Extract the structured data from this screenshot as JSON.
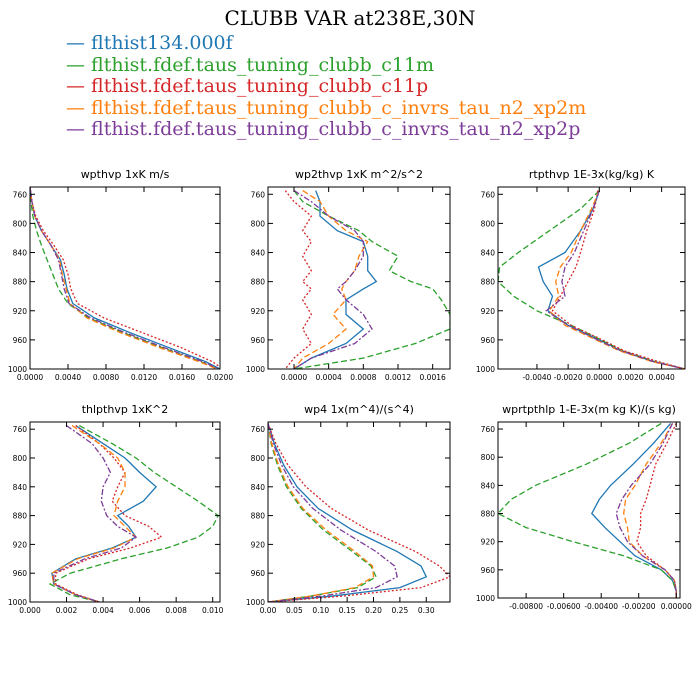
{
  "title": "CLUBB VAR at238E,30N",
  "legend": [
    {
      "label": "flthist134.000f",
      "color": "#1f77b4"
    },
    {
      "label": "flthist.fdef.taus_tuning_clubb_c11m",
      "color": "#2ca02c"
    },
    {
      "label": "flthist.fdef.taus_tuning_clubb_c11p",
      "color": "#d62728"
    },
    {
      "label": "flthist.fdef.taus_tuning_clubb_c_invrs_tau_n2_xp2m",
      "color": "#ff7f0e"
    },
    {
      "label": "flthist.fdef.taus_tuning_clubb_c_invrs_tau_n2_xp2p",
      "color": "#7d3c98"
    }
  ],
  "chart_data": [
    {
      "type": "line",
      "title": "wpthvp   1xK m/s",
      "xlim": [
        0,
        0.02
      ],
      "ylim": [
        1000,
        750
      ],
      "xticks": [
        "0.0000",
        "0.0040",
        "0.0080",
        "0.0120",
        "0.0160",
        "0.0200"
      ],
      "xtick_values": [
        0,
        0.004,
        0.008,
        0.012,
        0.016,
        0.02
      ],
      "yticks": [
        "760",
        "800",
        "840",
        "880",
        "920",
        "960",
        "1000"
      ],
      "ytick_values": [
        760,
        800,
        840,
        880,
        920,
        960,
        1000
      ],
      "y": [
        750,
        770,
        790,
        810,
        830,
        850,
        870,
        890,
        910,
        930,
        950,
        970,
        990,
        1000
      ],
      "series": [
        {
          "values": [
            0.0,
            0.0002,
            0.0005,
            0.0012,
            0.0022,
            0.0032,
            0.0036,
            0.0039,
            0.0045,
            0.0068,
            0.0105,
            0.0145,
            0.0185,
            0.02
          ],
          "color": "#1f77b4",
          "dash": ""
        },
        {
          "values": [
            0.0,
            0.0001,
            0.0003,
            0.0007,
            0.0012,
            0.0018,
            0.0024,
            0.003,
            0.004,
            0.0062,
            0.0098,
            0.0138,
            0.018,
            0.0198
          ],
          "color": "#2ca02c",
          "dash": "6,3"
        },
        {
          "values": [
            0.0,
            0.0002,
            0.0006,
            0.0014,
            0.0025,
            0.0035,
            0.004,
            0.0043,
            0.005,
            0.0078,
            0.0118,
            0.0158,
            0.0192,
            0.0203
          ],
          "color": "#d62728",
          "dash": "2,2"
        },
        {
          "values": [
            0.0,
            0.0002,
            0.0005,
            0.0012,
            0.0022,
            0.0031,
            0.0034,
            0.0038,
            0.0042,
            0.006,
            0.0095,
            0.0135,
            0.0178,
            0.0197
          ],
          "color": "#ff7f0e",
          "dash": "6,3"
        },
        {
          "values": [
            0.0,
            0.0002,
            0.0005,
            0.0012,
            0.0022,
            0.003,
            0.0033,
            0.0036,
            0.0041,
            0.0064,
            0.01,
            0.014,
            0.0182,
            0.0199
          ],
          "color": "#7d3c98",
          "dash": "6,2,2,2"
        }
      ]
    },
    {
      "type": "line",
      "title": "wp2thvp   1xK m^2/s^2",
      "xlim": [
        -0.0003,
        0.0018
      ],
      "ylim": [
        1000,
        750
      ],
      "xticks": [
        "0.0000",
        "0.0004",
        "0.0008",
        "0.0012",
        "0.0016"
      ],
      "xtick_values": [
        0,
        0.0004,
        0.0008,
        0.0012,
        0.0016
      ],
      "yticks": [
        "760",
        "800",
        "840",
        "880",
        "920",
        "960",
        "1000"
      ],
      "ytick_values": [
        760,
        800,
        840,
        880,
        920,
        960,
        1000
      ],
      "y": [
        755,
        770,
        790,
        810,
        825,
        845,
        865,
        880,
        890,
        905,
        925,
        945,
        965,
        985,
        1000
      ],
      "series": [
        {
          "values": [
            0.00025,
            0.0003,
            0.0003,
            0.0005,
            0.0008,
            0.00085,
            0.00085,
            0.00095,
            0.0008,
            0.0006,
            0.0006,
            0.0008,
            0.0006,
            0.0002,
            0.0
          ],
          "color": "#1f77b4",
          "dash": ""
        },
        {
          "values": [
            0.0,
            0.0001,
            0.0004,
            0.00075,
            0.0009,
            0.0012,
            0.0011,
            0.00135,
            0.0016,
            0.0017,
            0.0018,
            0.0018,
            0.0014,
            0.0008,
            0.0
          ],
          "color": "#2ca02c",
          "dash": "6,3"
        },
        {
          "values": [
            -0.0001,
            0.0,
            0.0002,
            0.0001,
            0.0002,
            0.0001,
            0.0002,
            0.0001,
            0.0002,
            0.0001,
            0.0002,
            0.0001,
            0.0002,
            0.0,
            -0.0001
          ],
          "color": "#d62728",
          "dash": "2,2"
        },
        {
          "values": [
            0.0001,
            0.0003,
            0.0004,
            0.0006,
            0.00085,
            0.00075,
            0.0007,
            0.0006,
            0.00055,
            0.0006,
            0.00045,
            0.0006,
            0.0004,
            0.0001,
            0.0
          ],
          "color": "#ff7f0e",
          "dash": "6,3"
        },
        {
          "values": [
            0.0,
            0.0002,
            0.0004,
            0.0007,
            0.0008,
            0.0008,
            0.0007,
            0.0006,
            0.0005,
            0.0006,
            0.0008,
            0.0009,
            0.0007,
            0.0002,
            0.0
          ],
          "color": "#7d3c98",
          "dash": "6,2,2,2"
        }
      ]
    },
    {
      "type": "line",
      "title": "rtpthvp   1E-3x(kg/kg) K",
      "xlim": [
        -0.0065,
        0.0055
      ],
      "ylim": [
        1000,
        750
      ],
      "xticks": [
        "-0.0040",
        "-0.0020",
        "0.0000",
        "0.0020",
        "0.0040"
      ],
      "xtick_values": [
        -0.004,
        -0.002,
        0,
        0.002,
        0.004
      ],
      "yticks": [
        "760",
        "800",
        "840",
        "880",
        "920",
        "960",
        "1000"
      ],
      "ytick_values": [
        760,
        800,
        840,
        880,
        920,
        960,
        1000
      ],
      "y": [
        755,
        780,
        810,
        840,
        860,
        880,
        900,
        920,
        940,
        960,
        975,
        990,
        1000
      ],
      "series": [
        {
          "values": [
            0.0,
            -0.0004,
            -0.0012,
            -0.0022,
            -0.0039,
            -0.0036,
            -0.003,
            -0.0033,
            -0.002,
            0.0,
            0.0014,
            0.0035,
            0.0055
          ],
          "color": "#1f77b4",
          "dash": ""
        },
        {
          "values": [
            0.0,
            -0.0012,
            -0.0032,
            -0.0052,
            -0.0064,
            -0.0065,
            -0.0055,
            -0.004,
            -0.0018,
            0.0001,
            0.0015,
            0.0036,
            0.0055
          ],
          "color": "#2ca02c",
          "dash": "6,3"
        },
        {
          "values": [
            -0.0001,
            -0.0003,
            -0.0008,
            -0.0012,
            -0.0015,
            -0.002,
            -0.0025,
            -0.003,
            -0.0018,
            0.0002,
            0.0016,
            0.0038,
            0.0055
          ],
          "color": "#d62728",
          "dash": "2,2"
        },
        {
          "values": [
            0.0,
            -0.0005,
            -0.0012,
            -0.0018,
            -0.0025,
            -0.0028,
            -0.0026,
            -0.0032,
            -0.0022,
            -0.0002,
            0.0013,
            0.0034,
            0.0055
          ],
          "color": "#ff7f0e",
          "dash": "6,3"
        },
        {
          "values": [
            0.0,
            -0.0004,
            -0.001,
            -0.0016,
            -0.0022,
            -0.0024,
            -0.0022,
            -0.0034,
            -0.002,
            -0.0001,
            0.0014,
            0.0035,
            0.0055
          ],
          "color": "#7d3c98",
          "dash": "6,2,2,2"
        }
      ]
    },
    {
      "type": "line",
      "title": "thlpthvp   1xK^2",
      "xlim": [
        0,
        0.0104
      ],
      "ylim": [
        1000,
        750
      ],
      "xticks": [
        "0.000",
        "0.002",
        "0.004",
        "0.006",
        "0.008",
        "0.010"
      ],
      "xtick_values": [
        0,
        0.002,
        0.004,
        0.006,
        0.008,
        0.01
      ],
      "yticks": [
        "760",
        "800",
        "840",
        "880",
        "920",
        "960",
        "1000"
      ],
      "ytick_values": [
        760,
        800,
        840,
        880,
        920,
        960,
        1000
      ],
      "y": [
        755,
        780,
        800,
        820,
        840,
        860,
        880,
        895,
        910,
        925,
        940,
        960,
        975,
        990,
        1000
      ],
      "series": [
        {
          "values": [
            0.0025,
            0.004,
            0.0052,
            0.006,
            0.0069,
            0.0062,
            0.0048,
            0.0054,
            0.0058,
            0.0045,
            0.0025,
            0.0012,
            0.0013,
            0.0025,
            0.0038
          ],
          "color": "#1f77b4",
          "dash": ""
        },
        {
          "values": [
            0.0027,
            0.0045,
            0.0058,
            0.0068,
            0.008,
            0.0092,
            0.0103,
            0.01,
            0.0092,
            0.0075,
            0.005,
            0.0022,
            0.0011,
            0.0022,
            0.0038
          ],
          "color": "#2ca02c",
          "dash": "6,3"
        },
        {
          "values": [
            0.0025,
            0.0038,
            0.0046,
            0.0052,
            0.0048,
            0.0045,
            0.0052,
            0.0065,
            0.0072,
            0.0055,
            0.0032,
            0.0014,
            0.0014,
            0.0026,
            0.0038
          ],
          "color": "#d62728",
          "dash": "2,2"
        },
        {
          "values": [
            0.0023,
            0.0038,
            0.0048,
            0.0052,
            0.0052,
            0.0048,
            0.0046,
            0.0052,
            0.0058,
            0.0046,
            0.0026,
            0.0012,
            0.0013,
            0.0025,
            0.0038
          ],
          "color": "#ff7f0e",
          "dash": "6,3"
        },
        {
          "values": [
            0.002,
            0.0034,
            0.004,
            0.0044,
            0.004,
            0.0039,
            0.0042,
            0.0048,
            0.0058,
            0.005,
            0.003,
            0.0013,
            0.0013,
            0.0025,
            0.0038
          ],
          "color": "#7d3c98",
          "dash": "6,2,2,2"
        }
      ]
    },
    {
      "type": "line",
      "title": "wp4   1x(m^4)/(s^4)",
      "xlim": [
        0,
        0.345
      ],
      "ylim": [
        1000,
        750
      ],
      "xticks": [
        "0.00",
        "0.05",
        "0.10",
        "0.15",
        "0.20",
        "0.25",
        "0.30"
      ],
      "xtick_values": [
        0,
        0.05,
        0.1,
        0.15,
        0.2,
        0.25,
        0.3
      ],
      "yticks": [
        "760",
        "800",
        "840",
        "880",
        "920",
        "960",
        "1000"
      ],
      "ytick_values": [
        760,
        800,
        840,
        880,
        920,
        960,
        1000
      ],
      "y": [
        752,
        780,
        810,
        840,
        870,
        900,
        930,
        950,
        965,
        980,
        992,
        1000
      ],
      "series": [
        {
          "values": [
            0.0,
            0.012,
            0.03,
            0.055,
            0.095,
            0.16,
            0.245,
            0.29,
            0.3,
            0.25,
            0.12,
            0.0
          ],
          "color": "#1f77b4",
          "dash": ""
        },
        {
          "values": [
            0.0,
            0.006,
            0.018,
            0.035,
            0.063,
            0.105,
            0.16,
            0.195,
            0.205,
            0.17,
            0.08,
            0.0
          ],
          "color": "#2ca02c",
          "dash": "6,3"
        },
        {
          "values": [
            0.0,
            0.015,
            0.038,
            0.072,
            0.12,
            0.19,
            0.28,
            0.325,
            0.345,
            0.29,
            0.14,
            0.0
          ],
          "color": "#d62728",
          "dash": "2,2"
        },
        {
          "values": [
            0.0,
            0.007,
            0.02,
            0.038,
            0.066,
            0.11,
            0.165,
            0.198,
            0.2,
            0.165,
            0.08,
            0.0
          ],
          "color": "#ff7f0e",
          "dash": "6,3"
        },
        {
          "values": [
            0.0,
            0.01,
            0.026,
            0.048,
            0.085,
            0.138,
            0.205,
            0.24,
            0.245,
            0.205,
            0.1,
            0.0
          ],
          "color": "#7d3c98",
          "dash": "6,2,2,2"
        }
      ]
    },
    {
      "type": "line",
      "title": "wprtpthlp   1-E-3x(m kg K)/(s kg)",
      "xlim": [
        -0.0095,
        0.0002
      ],
      "ylim": [
        1000,
        750
      ],
      "xticks": [
        "-0.00800",
        "-0.00600",
        "-0.00400",
        "-0.00200",
        "0.00000"
      ],
      "xtick_values": [
        -0.008,
        -0.006,
        -0.004,
        -0.002,
        0
      ],
      "yticks": [
        "760",
        "800",
        "840",
        "880",
        "920",
        "960",
        "1000"
      ],
      "ytick_values": [
        760,
        800,
        840,
        880,
        920,
        960,
        1000
      ],
      "y": [
        752,
        780,
        810,
        840,
        860,
        880,
        900,
        920,
        940,
        960,
        975,
        990,
        1000
      ],
      "series": [
        {
          "values": [
            -0.0003,
            -0.0012,
            -0.0023,
            -0.0035,
            -0.0041,
            -0.0045,
            -0.0038,
            -0.003,
            -0.0022,
            -0.0008,
            -0.0002,
            0.0,
            0.0
          ],
          "color": "#1f77b4",
          "dash": ""
        },
        {
          "values": [
            -0.0008,
            -0.0025,
            -0.0048,
            -0.0075,
            -0.0088,
            -0.0095,
            -0.008,
            -0.0055,
            -0.0028,
            -0.0008,
            -0.0002,
            0.0,
            0.0
          ],
          "color": "#2ca02c",
          "dash": "6,3"
        },
        {
          "values": [
            0.0,
            -0.0005,
            -0.0011,
            -0.0014,
            -0.0016,
            -0.0019,
            -0.0019,
            -0.0021,
            -0.0016,
            -0.0006,
            -0.0001,
            0.0,
            0.0
          ],
          "color": "#d62728",
          "dash": "2,2"
        },
        {
          "values": [
            -0.0002,
            -0.0008,
            -0.0016,
            -0.0022,
            -0.0027,
            -0.0028,
            -0.0026,
            -0.0025,
            -0.0018,
            -0.0006,
            -0.0001,
            0.0,
            0.0
          ],
          "color": "#ff7f0e",
          "dash": "6,3"
        },
        {
          "values": [
            -0.0002,
            -0.0007,
            -0.0014,
            -0.0024,
            -0.0029,
            -0.0032,
            -0.003,
            -0.0026,
            -0.0018,
            -0.0006,
            -0.0001,
            0.0,
            0.0
          ],
          "color": "#7d3c98",
          "dash": "6,2,2,2"
        }
      ]
    }
  ]
}
